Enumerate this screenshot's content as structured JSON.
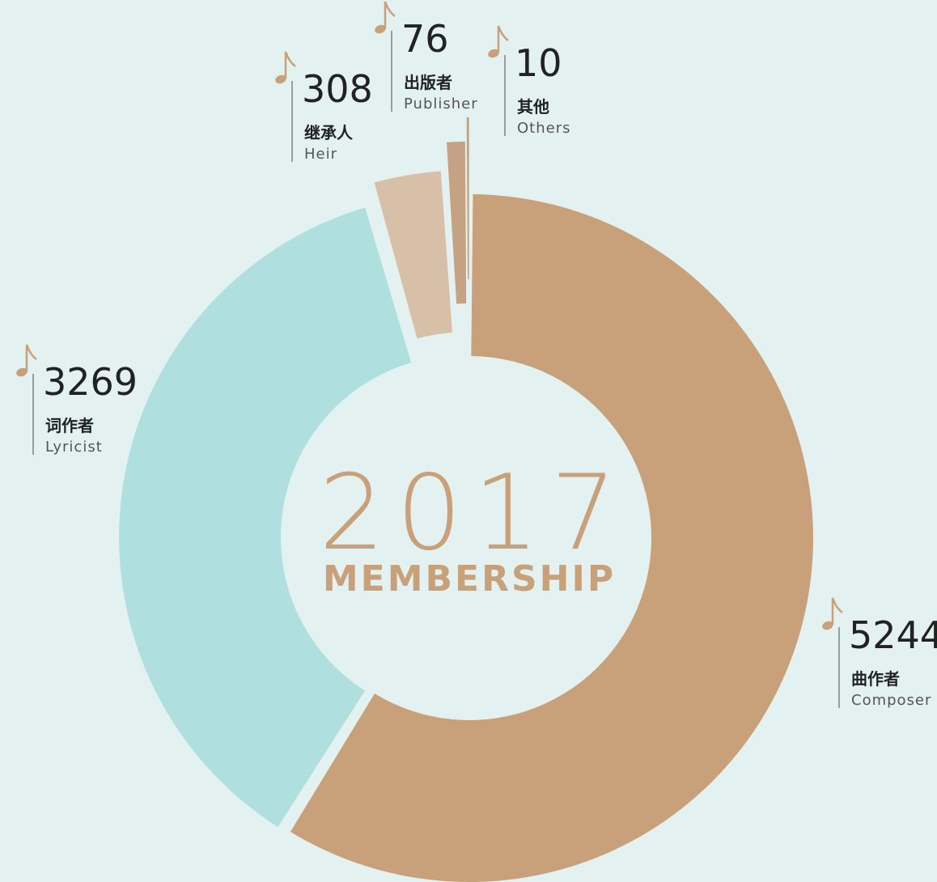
{
  "chart_data": {
    "type": "donut",
    "title": "2017",
    "subtitle": "MEMBERSHIP",
    "categories": [
      "曲作者",
      "词作者",
      "继承人",
      "出版者",
      "其他"
    ],
    "category_subtitles": [
      "Composer",
      "Lyricist",
      "Heir",
      "Publisher",
      "Others"
    ],
    "values": [
      5244,
      3269,
      308,
      76,
      10
    ],
    "colors": [
      "#c8a17a",
      "#b0dfe0",
      "#d8bfa8",
      "#c4a283",
      "#c8a17a"
    ]
  }
}
